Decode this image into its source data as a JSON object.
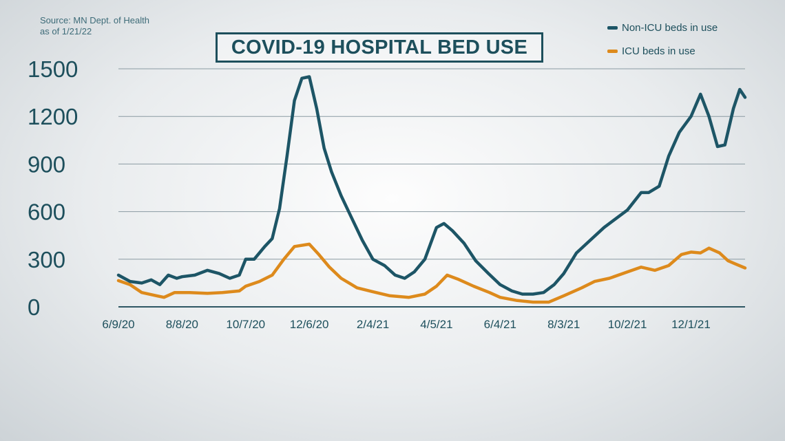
{
  "source": {
    "line1": "Source: MN Dept. of Health",
    "line2": "as of 1/21/22"
  },
  "chart_data": {
    "type": "line",
    "title": "COVID-19 HOSPITAL BED USE",
    "xlabel": "",
    "ylabel": "",
    "ylim": [
      0,
      1500
    ],
    "yticks": [
      "0",
      "300",
      "600",
      "900",
      "1200",
      "1500"
    ],
    "x_tick_labels": [
      "6/9/20",
      "8/8/20",
      "10/7/20",
      "12/6/20",
      "2/4/21",
      "4/5/21",
      "6/4/21",
      "8/3/21",
      "10/2/21",
      "12/1/21"
    ],
    "xlim": [
      "2020-06-09",
      "2022-01-21"
    ],
    "grid": true,
    "legend_position": "top-right",
    "colors": {
      "non_icu": "#1d5566",
      "icu": "#dd8a1c"
    },
    "series": [
      {
        "name": "Non-ICU beds in use",
        "points": [
          [
            "2020-06-09",
            200
          ],
          [
            "2020-06-20",
            160
          ],
          [
            "2020-07-01",
            150
          ],
          [
            "2020-07-10",
            170
          ],
          [
            "2020-07-18",
            140
          ],
          [
            "2020-07-26",
            200
          ],
          [
            "2020-08-03",
            180
          ],
          [
            "2020-08-08",
            190
          ],
          [
            "2020-08-20",
            200
          ],
          [
            "2020-09-01",
            230
          ],
          [
            "2020-09-12",
            210
          ],
          [
            "2020-09-22",
            180
          ],
          [
            "2020-10-01",
            200
          ],
          [
            "2020-10-07",
            300
          ],
          [
            "2020-10-15",
            300
          ],
          [
            "2020-10-25",
            380
          ],
          [
            "2020-11-01",
            430
          ],
          [
            "2020-11-08",
            620
          ],
          [
            "2020-11-15",
            950
          ],
          [
            "2020-11-22",
            1300
          ],
          [
            "2020-11-29",
            1440
          ],
          [
            "2020-12-06",
            1450
          ],
          [
            "2020-12-13",
            1250
          ],
          [
            "2020-12-20",
            1000
          ],
          [
            "2020-12-27",
            850
          ],
          [
            "2021-01-05",
            700
          ],
          [
            "2021-01-15",
            560
          ],
          [
            "2021-01-25",
            420
          ],
          [
            "2021-02-04",
            300
          ],
          [
            "2021-02-15",
            260
          ],
          [
            "2021-02-25",
            200
          ],
          [
            "2021-03-06",
            180
          ],
          [
            "2021-03-15",
            220
          ],
          [
            "2021-03-25",
            300
          ],
          [
            "2021-04-05",
            500
          ],
          [
            "2021-04-12",
            525
          ],
          [
            "2021-04-20",
            480
          ],
          [
            "2021-05-01",
            400
          ],
          [
            "2021-05-12",
            290
          ],
          [
            "2021-05-24",
            210
          ],
          [
            "2021-06-04",
            140
          ],
          [
            "2021-06-15",
            100
          ],
          [
            "2021-06-25",
            80
          ],
          [
            "2021-07-05",
            80
          ],
          [
            "2021-07-15",
            90
          ],
          [
            "2021-07-25",
            140
          ],
          [
            "2021-08-03",
            210
          ],
          [
            "2021-08-15",
            340
          ],
          [
            "2021-08-28",
            420
          ],
          [
            "2021-09-10",
            500
          ],
          [
            "2021-09-22",
            560
          ],
          [
            "2021-10-02",
            610
          ],
          [
            "2021-10-15",
            720
          ],
          [
            "2021-10-22",
            720
          ],
          [
            "2021-11-01",
            760
          ],
          [
            "2021-11-10",
            950
          ],
          [
            "2021-11-20",
            1100
          ],
          [
            "2021-12-01",
            1200
          ],
          [
            "2021-12-10",
            1340
          ],
          [
            "2021-12-18",
            1200
          ],
          [
            "2021-12-26",
            1010
          ],
          [
            "2022-01-02",
            1020
          ],
          [
            "2022-01-10",
            1250
          ],
          [
            "2022-01-16",
            1370
          ],
          [
            "2022-01-21",
            1320
          ]
        ]
      },
      {
        "name": "ICU beds in use",
        "points": [
          [
            "2020-06-09",
            165
          ],
          [
            "2020-06-20",
            140
          ],
          [
            "2020-07-01",
            90
          ],
          [
            "2020-07-15",
            70
          ],
          [
            "2020-07-22",
            60
          ],
          [
            "2020-08-01",
            90
          ],
          [
            "2020-08-15",
            90
          ],
          [
            "2020-09-01",
            85
          ],
          [
            "2020-09-15",
            90
          ],
          [
            "2020-10-01",
            100
          ],
          [
            "2020-10-07",
            130
          ],
          [
            "2020-10-20",
            160
          ],
          [
            "2020-11-01",
            200
          ],
          [
            "2020-11-12",
            300
          ],
          [
            "2020-11-22",
            380
          ],
          [
            "2020-12-06",
            395
          ],
          [
            "2020-12-15",
            330
          ],
          [
            "2020-12-25",
            250
          ],
          [
            "2021-01-05",
            180
          ],
          [
            "2021-01-20",
            120
          ],
          [
            "2021-02-04",
            95
          ],
          [
            "2021-02-20",
            70
          ],
          [
            "2021-03-10",
            60
          ],
          [
            "2021-03-25",
            80
          ],
          [
            "2021-04-05",
            130
          ],
          [
            "2021-04-15",
            200
          ],
          [
            "2021-04-25",
            175
          ],
          [
            "2021-05-10",
            130
          ],
          [
            "2021-05-25",
            90
          ],
          [
            "2021-06-04",
            60
          ],
          [
            "2021-06-20",
            40
          ],
          [
            "2021-07-05",
            30
          ],
          [
            "2021-07-20",
            30
          ],
          [
            "2021-08-03",
            70
          ],
          [
            "2021-08-20",
            120
          ],
          [
            "2021-09-01",
            160
          ],
          [
            "2021-09-15",
            180
          ],
          [
            "2021-10-02",
            220
          ],
          [
            "2021-10-15",
            250
          ],
          [
            "2021-10-28",
            230
          ],
          [
            "2021-11-10",
            260
          ],
          [
            "2021-11-22",
            330
          ],
          [
            "2021-12-01",
            345
          ],
          [
            "2021-12-10",
            340
          ],
          [
            "2021-12-18",
            370
          ],
          [
            "2021-12-28",
            340
          ],
          [
            "2022-01-05",
            290
          ],
          [
            "2022-01-12",
            270
          ],
          [
            "2022-01-21",
            245
          ]
        ]
      }
    ]
  }
}
